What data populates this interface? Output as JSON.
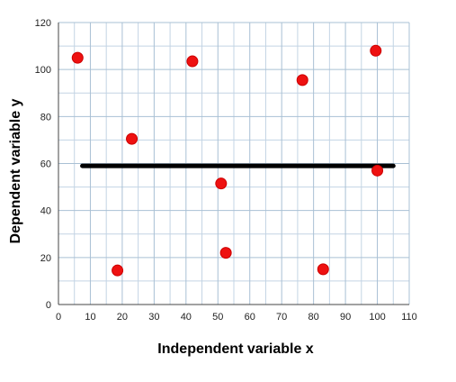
{
  "chart_data": {
    "type": "scatter",
    "title": "",
    "xlabel": "Independent variable x",
    "ylabel": "Dependent variable y",
    "xlim": [
      0,
      110
    ],
    "ylim": [
      0,
      120
    ],
    "x_ticks": [
      "0",
      "10",
      "20",
      "30",
      "40",
      "50",
      "60",
      "70",
      "80",
      "90",
      "100",
      "110"
    ],
    "y_ticks": [
      "0",
      "20",
      "40",
      "60",
      "80",
      "100",
      "120"
    ],
    "grid": true,
    "minor_grid": true,
    "series": [
      {
        "points": [
          {
            "x": 6,
            "y": 105
          },
          {
            "x": 18.5,
            "y": 14.5
          },
          {
            "x": 23,
            "y": 70.5
          },
          {
            "x": 42,
            "y": 103.5
          },
          {
            "x": 51,
            "y": 51.5
          },
          {
            "x": 52.5,
            "y": 22
          },
          {
            "x": 76.5,
            "y": 95.5
          },
          {
            "x": 83,
            "y": 15
          },
          {
            "x": 99.5,
            "y": 108
          },
          {
            "x": 100,
            "y": 57
          }
        ]
      }
    ],
    "line": {
      "x": [
        7.5,
        105
      ],
      "y": [
        59,
        59
      ]
    },
    "colors": {
      "points": "#ee1111",
      "line": "#000000",
      "grid_major": "#a9c0d4",
      "grid_minor": "#c3d4e4",
      "axis": "#444444"
    }
  }
}
